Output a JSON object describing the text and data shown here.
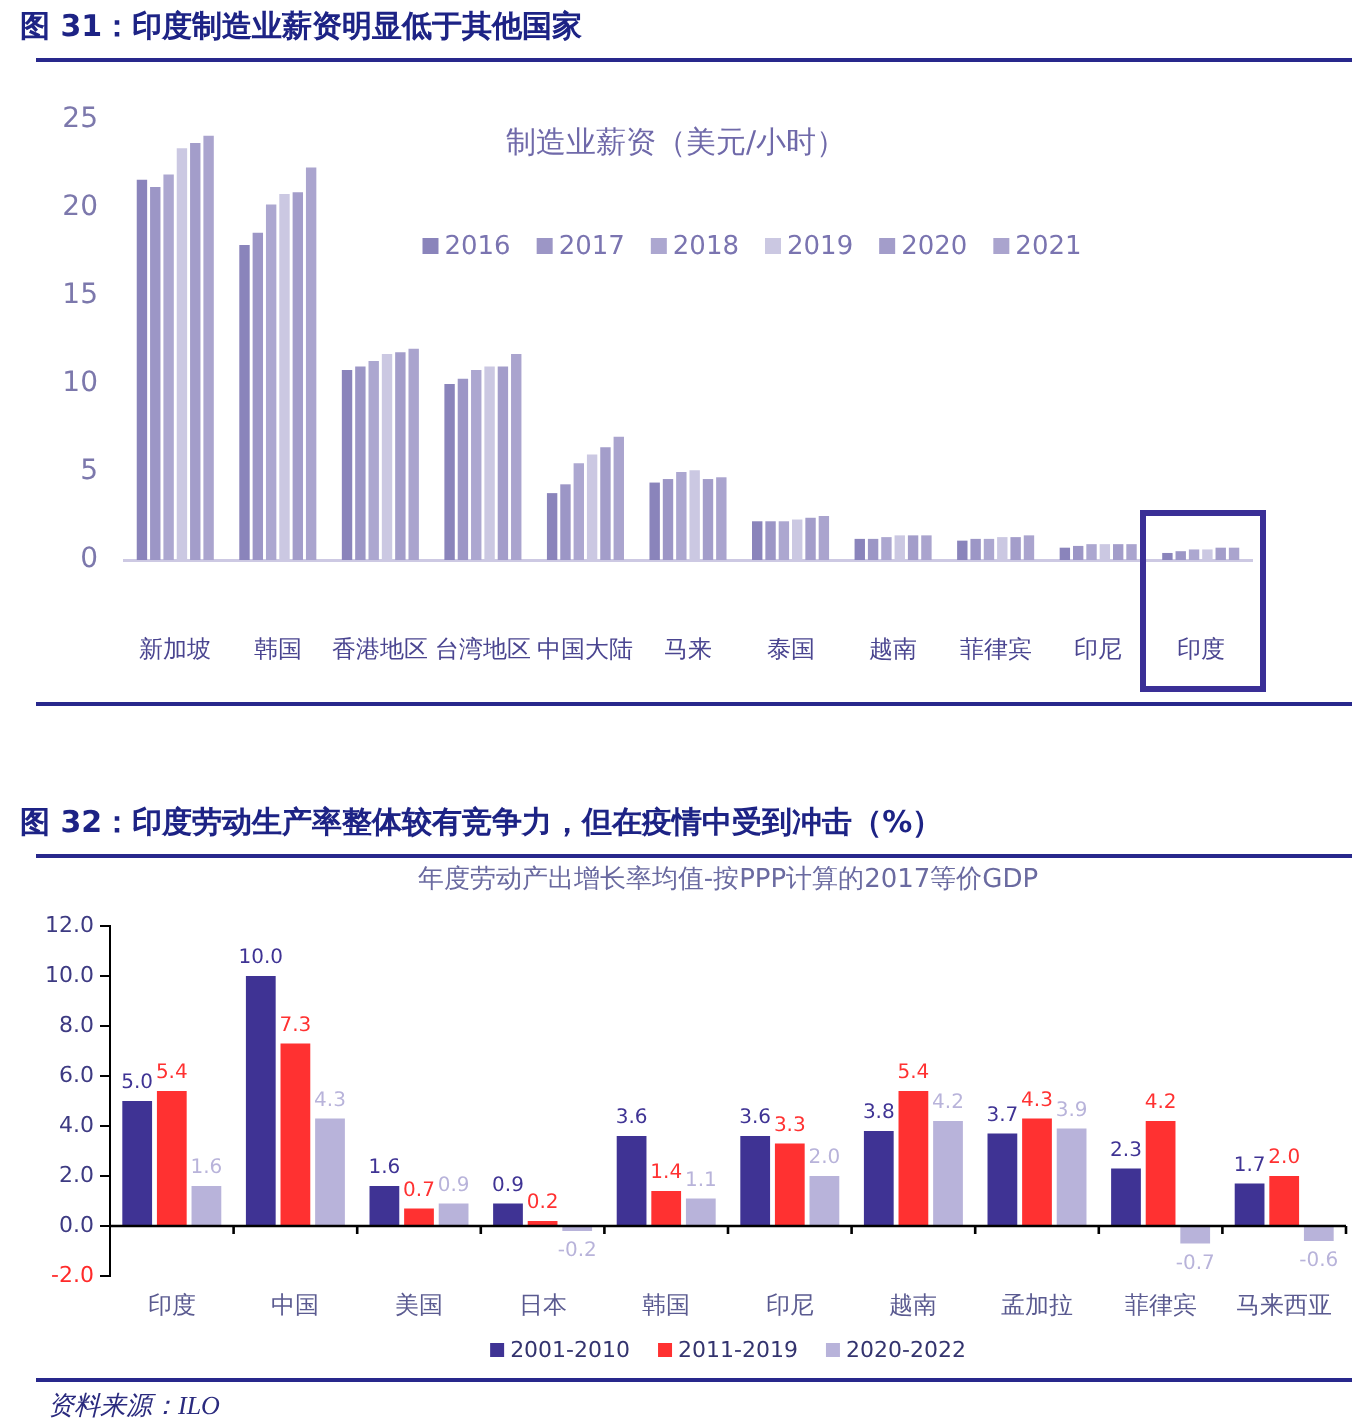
{
  "chart_data": [
    {
      "type": "bar",
      "title": "图 31：印度制造业薪资明显低于其他国家",
      "subtitle": "制造业薪资（美元/小时）",
      "categories": [
        "新加坡",
        "韩国",
        "香港地区",
        "台湾地区",
        "中国大陆",
        "马来",
        "泰国",
        "越南",
        "菲律宾",
        "印尼",
        "印度"
      ],
      "series": [
        {
          "name": "2016",
          "color": "#8a84bb",
          "values": [
            21.6,
            17.9,
            10.8,
            10.0,
            3.8,
            4.4,
            2.2,
            1.2,
            1.1,
            0.7,
            0.4
          ]
        },
        {
          "name": "2017",
          "color": "#9c96c6",
          "values": [
            21.2,
            18.6,
            11.0,
            10.3,
            4.3,
            4.6,
            2.2,
            1.2,
            1.2,
            0.8,
            0.5
          ]
        },
        {
          "name": "2018",
          "color": "#aca7d0",
          "values": [
            21.9,
            20.2,
            11.3,
            10.8,
            5.5,
            5.0,
            2.2,
            1.3,
            1.2,
            0.9,
            0.6
          ]
        },
        {
          "name": "2019",
          "color": "#cbc8e2",
          "values": [
            23.4,
            20.8,
            11.7,
            11.0,
            6.0,
            5.1,
            2.3,
            1.4,
            1.3,
            0.9,
            0.6
          ]
        },
        {
          "name": "2020",
          "color": "#a39dca",
          "values": [
            23.7,
            20.9,
            11.8,
            11.0,
            6.4,
            4.6,
            2.4,
            1.4,
            1.3,
            0.9,
            0.7
          ]
        },
        {
          "name": "2021",
          "color": "#aaa4ce",
          "values": [
            24.1,
            22.3,
            12.0,
            11.7,
            7.0,
            4.7,
            2.5,
            1.4,
            1.4,
            0.9,
            0.7
          ]
        }
      ],
      "ylim": [
        0,
        25
      ],
      "yticks": [
        0,
        5,
        10,
        15,
        20,
        25
      ],
      "legend": "top"
    },
    {
      "type": "bar",
      "title": "图 32：印度劳动生产率整体较有竞争力，但在疫情中受到冲击（%）",
      "subtitle": "年度劳动产出增长率均值-按PPP计算的2017等价GDP",
      "categories": [
        "印度",
        "中国",
        "美国",
        "日本",
        "韩国",
        "印尼",
        "越南",
        "孟加拉",
        "菲律宾",
        "马来西亚"
      ],
      "series": [
        {
          "name": "2001-2010",
          "color": "#3f3394",
          "values": [
            5.0,
            10.0,
            1.6,
            0.9,
            3.6,
            3.6,
            3.8,
            3.7,
            2.3,
            1.7
          ],
          "value_labels": [
            "5.0",
            "10.0",
            "1.6",
            "0.9",
            "3.6",
            "3.6",
            "3.8",
            "3.7",
            "2.3",
            "1.7"
          ]
        },
        {
          "name": "2011-2019",
          "color": "#ff3131",
          "values": [
            5.4,
            7.3,
            0.7,
            0.2,
            1.4,
            3.3,
            5.4,
            4.3,
            4.2,
            2.0
          ],
          "value_labels": [
            "5.4",
            "7.3",
            "0.7",
            "0.2",
            "1.4",
            "3.3",
            "5.4",
            "4.3",
            "4.2",
            "2.0"
          ]
        },
        {
          "name": "2020-2022",
          "color": "#b8b3da",
          "values": [
            1.6,
            4.3,
            0.9,
            -0.2,
            1.1,
            2.0,
            4.2,
            3.9,
            -0.7,
            -0.6
          ],
          "value_labels": [
            "1.6",
            "4.3",
            "0.9",
            "-0.2",
            "1.1",
            "2.0",
            "4.2",
            "3.9",
            "-0.7",
            "-0.6"
          ]
        }
      ],
      "ylim": [
        -2,
        12
      ],
      "yticks": [
        {
          "value": -2,
          "label": "-2.0"
        },
        {
          "value": 0,
          "label": "0.0"
        },
        {
          "value": 2,
          "label": "2.0"
        },
        {
          "value": 4,
          "label": "4.0"
        },
        {
          "value": 6,
          "label": "6.0"
        },
        {
          "value": 8,
          "label": "8.0"
        },
        {
          "value": 10,
          "label": "10.0"
        },
        {
          "value": 12,
          "label": "12.0"
        }
      ],
      "legend": "bottom",
      "annotations": [
        "资料来源：ILO"
      ]
    }
  ]
}
